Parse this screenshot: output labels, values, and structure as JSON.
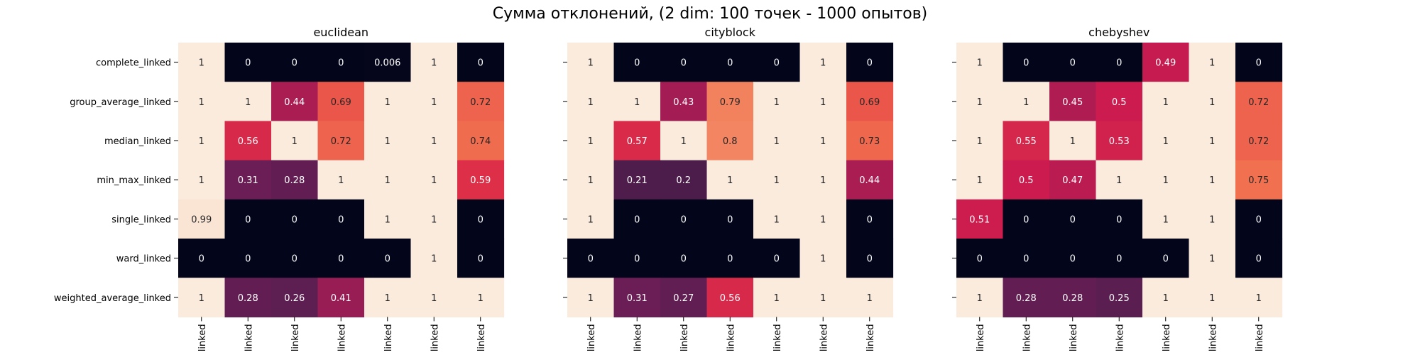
{
  "figure": {
    "title": "Сумма отклонений, (2 dim: 100 точек - 1000 опытов)"
  },
  "chart_data": [
    {
      "type": "heatmap",
      "title": "euclidean",
      "rows": [
        "complete_linked",
        "group_average_linked",
        "median_linked",
        "min_max_linked",
        "single_linked",
        "ward_linked",
        "weighted_average_linked"
      ],
      "col_tick_labels": [
        "linked",
        "linked",
        "linked",
        "linked",
        "linked",
        "linked",
        "linked"
      ],
      "values": [
        [
          1,
          0,
          0,
          0,
          0.006,
          1,
          0
        ],
        [
          1,
          1,
          0.44,
          0.69,
          1,
          1,
          0.72
        ],
        [
          1,
          0.56,
          1,
          0.72,
          1,
          1,
          0.74
        ],
        [
          1,
          0.31,
          0.28,
          1,
          1,
          1,
          0.59
        ],
        [
          0.99,
          0,
          0,
          0,
          1,
          1,
          0
        ],
        [
          0,
          0,
          0,
          0,
          0,
          1,
          0
        ],
        [
          1,
          0.28,
          0.26,
          0.41,
          1,
          1,
          1
        ]
      ],
      "cell_labels": [
        [
          "1",
          "0",
          "0",
          "0",
          "0.006",
          "1",
          "0"
        ],
        [
          "1",
          "1",
          "0.44",
          "0.69",
          "1",
          "1",
          "0.72"
        ],
        [
          "1",
          "0.56",
          "1",
          "0.72",
          "1",
          "1",
          "0.74"
        ],
        [
          "1",
          "0.31",
          "0.28",
          "1",
          "1",
          "1",
          "0.59"
        ],
        [
          "0.99",
          "0",
          "0",
          "0",
          "1",
          "1",
          "0"
        ],
        [
          "0",
          "0",
          "0",
          "0",
          "0",
          "1",
          "0"
        ],
        [
          "1",
          "0.28",
          "0.26",
          "0.41",
          "1",
          "1",
          "1"
        ]
      ],
      "colormap": "rocket",
      "value_range": [
        0,
        1
      ]
    },
    {
      "type": "heatmap",
      "title": "cityblock",
      "rows": [
        "complete_linked",
        "group_average_linked",
        "median_linked",
        "min_max_linked",
        "single_linked",
        "ward_linked",
        "weighted_average_linked"
      ],
      "col_tick_labels": [
        "linked",
        "linked",
        "linked",
        "linked",
        "linked",
        "linked",
        "linked"
      ],
      "values": [
        [
          1,
          0,
          0,
          0,
          0,
          1,
          0
        ],
        [
          1,
          1,
          0.43,
          0.79,
          1,
          1,
          0.69
        ],
        [
          1,
          0.57,
          1,
          0.8,
          1,
          1,
          0.73
        ],
        [
          1,
          0.21,
          0.2,
          1,
          1,
          1,
          0.44
        ],
        [
          1,
          0,
          0,
          0,
          1,
          1,
          0
        ],
        [
          0,
          0,
          0,
          0,
          0,
          1,
          0
        ],
        [
          1,
          0.31,
          0.27,
          0.56,
          1,
          1,
          1
        ]
      ],
      "cell_labels": [
        [
          "1",
          "0",
          "0",
          "0",
          "0",
          "1",
          "0"
        ],
        [
          "1",
          "1",
          "0.43",
          "0.79",
          "1",
          "1",
          "0.69"
        ],
        [
          "1",
          "0.57",
          "1",
          "0.8",
          "1",
          "1",
          "0.73"
        ],
        [
          "1",
          "0.21",
          "0.2",
          "1",
          "1",
          "1",
          "0.44"
        ],
        [
          "1",
          "0",
          "0",
          "0",
          "1",
          "1",
          "0"
        ],
        [
          "0",
          "0",
          "0",
          "0",
          "0",
          "1",
          "0"
        ],
        [
          "1",
          "0.31",
          "0.27",
          "0.56",
          "1",
          "1",
          "1"
        ]
      ],
      "colormap": "rocket",
      "value_range": [
        0,
        1
      ]
    },
    {
      "type": "heatmap",
      "title": "chebyshev",
      "rows": [
        "complete_linked",
        "group_average_linked",
        "median_linked",
        "min_max_linked",
        "single_linked",
        "ward_linked",
        "weighted_average_linked"
      ],
      "col_tick_labels": [
        "linked",
        "linked",
        "linked",
        "linked",
        "linked",
        "linked",
        "linked"
      ],
      "values": [
        [
          1,
          0,
          0,
          0,
          0.49,
          1,
          0
        ],
        [
          1,
          1,
          0.45,
          0.5,
          1,
          1,
          0.72
        ],
        [
          1,
          0.55,
          1,
          0.53,
          1,
          1,
          0.72
        ],
        [
          1,
          0.5,
          0.47,
          1,
          1,
          1,
          0.75
        ],
        [
          0.51,
          0,
          0,
          0,
          1,
          1,
          0
        ],
        [
          0,
          0,
          0,
          0,
          0,
          1,
          0
        ],
        [
          1,
          0.28,
          0.28,
          0.25,
          1,
          1,
          1
        ]
      ],
      "cell_labels": [
        [
          "1",
          "0",
          "0",
          "0",
          "0.49",
          "1",
          "0"
        ],
        [
          "1",
          "1",
          "0.45",
          "0.5",
          "1",
          "1",
          "0.72"
        ],
        [
          "1",
          "0.55",
          "1",
          "0.53",
          "1",
          "1",
          "0.72"
        ],
        [
          "1",
          "0.5",
          "0.47",
          "1",
          "1",
          "1",
          "0.75"
        ],
        [
          "0.51",
          "0",
          "0",
          "0",
          "1",
          "1",
          "0"
        ],
        [
          "0",
          "0",
          "0",
          "0",
          "0",
          "1",
          "0"
        ],
        [
          "1",
          "0.28",
          "0.28",
          "0.25",
          "1",
          "1",
          "1"
        ]
      ],
      "colormap": "rocket",
      "value_range": [
        0,
        1
      ]
    }
  ]
}
